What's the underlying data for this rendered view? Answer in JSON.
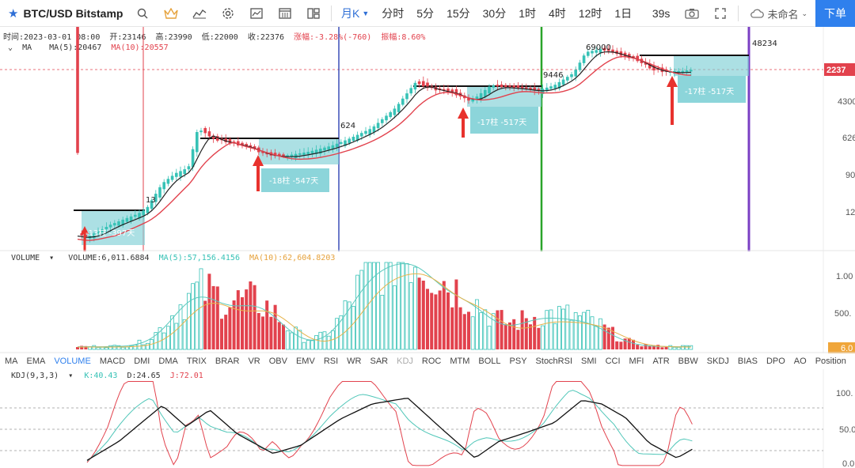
{
  "toolbar": {
    "symbol": "BTC/USD Bitstamp",
    "intervals": [
      "月K",
      "分时",
      "5分",
      "15分",
      "30分",
      "1时",
      "4时",
      "12时",
      "1日"
    ],
    "active_interval": "月K",
    "countdown": "39s",
    "user": "未命名",
    "order_button": "下单"
  },
  "ohlc": {
    "time": "时间:2023-03-01 08:00",
    "open": "开:23146",
    "high": "高:23990",
    "low": "低:22000",
    "close": "收:22376",
    "change": "涨幅:-3.28%(-760)",
    "amplitude": "振幅:8.60%"
  },
  "ma": {
    "name": "MA",
    "ma5": "MA(5):20467",
    "ma10": "MA(10):20557"
  },
  "price_axis": [
    "4300",
    "626",
    "90",
    "12"
  ],
  "current_price": "2237",
  "annotations": {
    "peak_labels": [
      "13",
      "624",
      "9446",
      "69000",
      "48234"
    ],
    "boxes": [
      {
        "label": "-13柱 -397天"
      },
      {
        "label": "-18柱 -547天"
      },
      {
        "label": "-17柱 -517天"
      },
      {
        "label": "-17柱 -517天"
      }
    ]
  },
  "volume": {
    "name": "VOLUME",
    "value": "VOLUME:6,011.6884",
    "ma5": "MA(5):57,156.4156",
    "ma10": "MA(10):62,604.8203",
    "axis": [
      "1.00",
      "500.",
      "6.0"
    ]
  },
  "indicator_tabs": [
    "MA",
    "EMA",
    "VOLUME",
    "MACD",
    "DMI",
    "DMA",
    "TRIX",
    "BRAR",
    "VR",
    "OBV",
    "EMV",
    "RSI",
    "WR",
    "SAR",
    "KDJ",
    "ROC",
    "MTM",
    "BOLL",
    "PSY",
    "StochRSI",
    "SMI",
    "CCI",
    "MFI",
    "ATR",
    "BBW",
    "SKDJ",
    "BIAS",
    "DPO",
    "AO",
    "Position"
  ],
  "active_indicator": "VOLUME",
  "kdj": {
    "name": "KDJ(9,3,3)",
    "k": "K:40.43",
    "d": "D:24.65",
    "j": "J:72.01",
    "axis": [
      "100.",
      "50.0",
      "0.0"
    ]
  },
  "colors": {
    "up": "#37c2b6",
    "down": "#e2424d",
    "accent": "#2f80ed",
    "box": "#7fd0d6"
  }
}
